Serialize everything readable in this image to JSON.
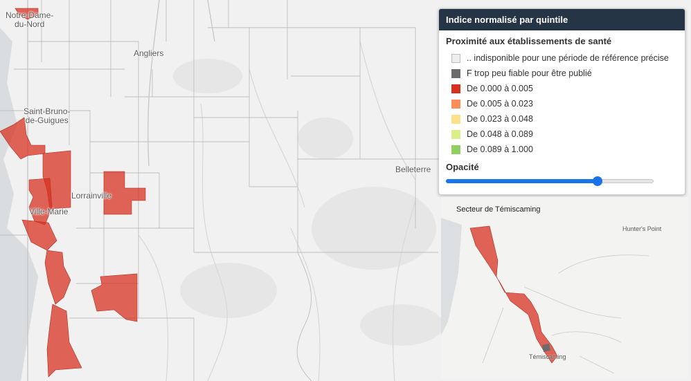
{
  "legend": {
    "title": "Indice normalisé par quintile",
    "subtitle": "Proximité aux établissements de santé",
    "items": [
      {
        "label": ".. indisponible pour une période de référence précise",
        "color": "#eeeeee"
      },
      {
        "label": "F trop peu fiable pour être publié",
        "color": "#6b6b6b"
      },
      {
        "label": "De 0.000 à 0.005",
        "color": "#d7301f"
      },
      {
        "label": "De 0.005 à 0.023",
        "color": "#fc8d59"
      },
      {
        "label": "De 0.023 à 0.048",
        "color": "#fee08b"
      },
      {
        "label": "De 0.048 à 0.089",
        "color": "#d9ef8b"
      },
      {
        "label": "De 0.089 à 1.000",
        "color": "#91cf60"
      }
    ],
    "opacity_label": "Opacité",
    "opacity_value": 0.74
  },
  "map": {
    "places": {
      "notre_dame_1": "Notre-Dame-",
      "notre_dame_2": "du-Nord",
      "angliers": "Angliers",
      "saint_bruno_1": "Saint-Bruno-",
      "saint_bruno_2": "de-Guigues",
      "lorrainville": "Lorrainville",
      "ville_marie": "Ville-Marie",
      "belleterre": "Belleterre"
    },
    "fill_color": "#d7301f"
  },
  "inset": {
    "title": "Secteur de Témiscaming",
    "places": {
      "temiscaming": "Témiscaming",
      "hunters_point": "Hunter's Point"
    }
  }
}
